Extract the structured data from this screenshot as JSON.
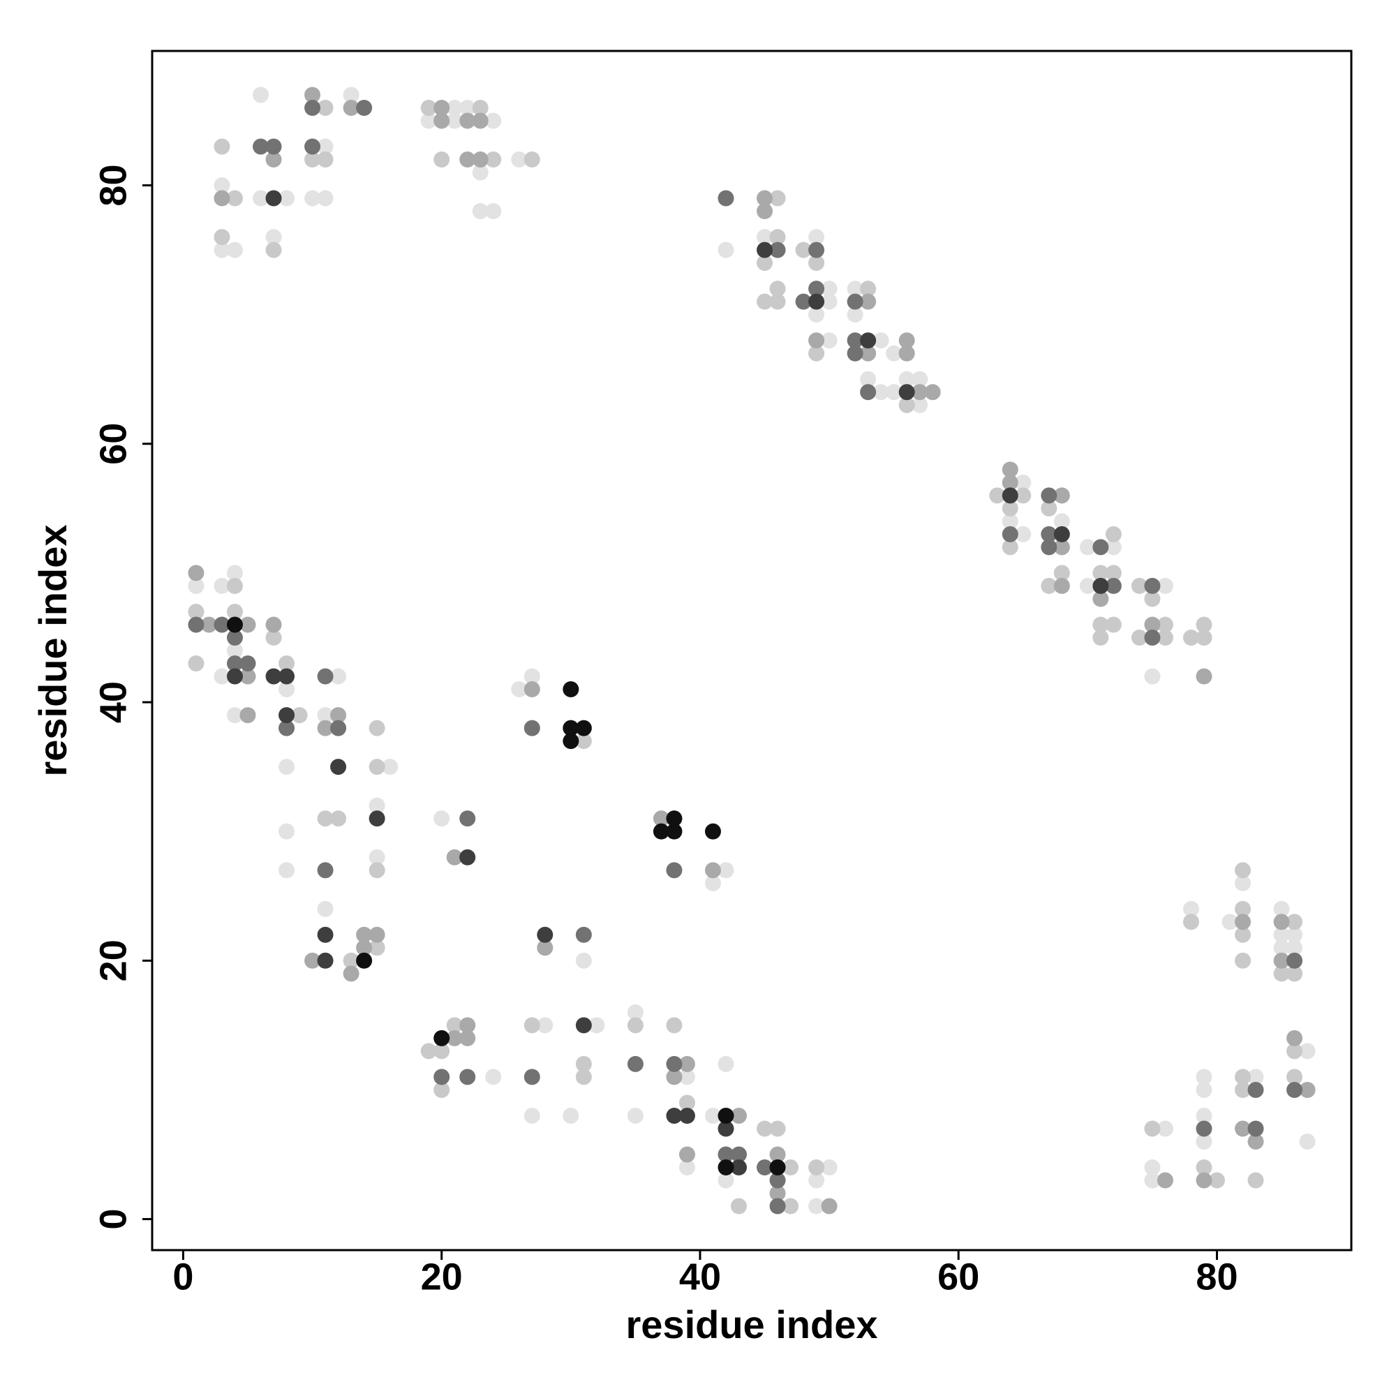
{
  "chart_data": {
    "type": "scatter",
    "xlabel": "residue index",
    "ylabel": "residue index",
    "xlim": [
      -2.4,
      90.4
    ],
    "ylim": [
      -2.4,
      90.4
    ],
    "xticks": [
      0,
      20,
      40,
      60,
      80
    ],
    "yticks": [
      0,
      20,
      40,
      60,
      80
    ],
    "series": [
      {
        "color": "#e2e2e2",
        "x": [
          6,
          11,
          3,
          6,
          8,
          10,
          11,
          3,
          4,
          7,
          13,
          21,
          22,
          19,
          21,
          24,
          23,
          26,
          23,
          24,
          42,
          45,
          49,
          50,
          50,
          49,
          50,
          52,
          52,
          54,
          55,
          53,
          54,
          55,
          56,
          57,
          57,
          65,
          64,
          65,
          68,
          70,
          72,
          70,
          76,
          75,
          1,
          3,
          4,
          4,
          3,
          8,
          4,
          12,
          11,
          8,
          16,
          15,
          8,
          15,
          8,
          11,
          31,
          20,
          26,
          27,
          42,
          41,
          24,
          28,
          27,
          30,
          32,
          35,
          35,
          39,
          39,
          42,
          41,
          42,
          50,
          49,
          49,
          78,
          82,
          81,
          85,
          85,
          86,
          85,
          86,
          87,
          87,
          79,
          79,
          79,
          79,
          83,
          76,
          75,
          75
        ],
        "values": [
          87,
          83,
          80,
          79,
          79,
          79,
          79,
          75,
          75,
          76,
          87,
          86,
          86,
          85,
          85,
          85,
          81,
          82,
          78,
          78,
          75,
          76,
          76,
          72,
          71,
          70,
          68,
          72,
          70,
          68,
          67,
          65,
          64,
          64,
          65,
          65,
          63,
          57,
          54,
          53,
          54,
          52,
          52,
          49,
          49,
          42,
          49,
          49,
          50,
          44,
          42,
          41,
          39,
          42,
          39,
          35,
          35,
          32,
          30,
          28,
          27,
          24,
          20,
          31,
          41,
          42,
          27,
          26,
          11,
          15,
          8,
          8,
          15,
          16,
          8,
          11,
          4,
          12,
          8,
          3,
          4,
          3,
          1,
          24,
          26,
          23,
          24,
          22,
          22,
          21,
          21,
          13,
          6,
          11,
          10,
          8,
          6,
          11,
          7,
          4,
          3
        ]
      },
      {
        "color": "#c9c9c9",
        "x": [
          11,
          3,
          10,
          11,
          4,
          3,
          7,
          19,
          23,
          20,
          24,
          27,
          46,
          46,
          45,
          46,
          45,
          46,
          48,
          49,
          49,
          53,
          56,
          63,
          65,
          64,
          64,
          67,
          68,
          67,
          72,
          71,
          72,
          71,
          72,
          71,
          74,
          75,
          76,
          74,
          76,
          78,
          79,
          79,
          1,
          1,
          4,
          4,
          7,
          8,
          9,
          15,
          15,
          11,
          12,
          15,
          15,
          13,
          31,
          19,
          20,
          21,
          20,
          27,
          31,
          31,
          35,
          38,
          39,
          43,
          45,
          46,
          47,
          47,
          49,
          78,
          82,
          82,
          82,
          82,
          86,
          85,
          86,
          86,
          86,
          79,
          80,
          82,
          82,
          83,
          75
        ],
        "values": [
          86,
          83,
          82,
          82,
          79,
          76,
          75,
          86,
          86,
          82,
          82,
          82,
          79,
          76,
          74,
          72,
          71,
          71,
          75,
          74,
          67,
          72,
          63,
          56,
          56,
          55,
          52,
          55,
          50,
          49,
          53,
          50,
          50,
          46,
          46,
          45,
          49,
          48,
          46,
          45,
          45,
          45,
          46,
          45,
          47,
          43,
          49,
          47,
          45,
          43,
          39,
          38,
          35,
          31,
          31,
          27,
          21,
          20,
          37,
          13,
          13,
          15,
          10,
          15,
          12,
          11,
          15,
          15,
          9,
          1,
          7,
          7,
          4,
          1,
          4,
          23,
          27,
          24,
          22,
          20,
          23,
          19,
          19,
          13,
          11,
          4,
          3,
          11,
          10,
          3,
          7
        ]
      },
      {
        "color": "#a9a9a9",
        "x": [
          10,
          13,
          3,
          7,
          22,
          23,
          20,
          20,
          22,
          23,
          45,
          45,
          49,
          53,
          53,
          56,
          56,
          57,
          58,
          64,
          64,
          68,
          68,
          68,
          71,
          75,
          79,
          1,
          2,
          5,
          5,
          7,
          5,
          12,
          11,
          14,
          15,
          14,
          10,
          13,
          21,
          27,
          28,
          37,
          41,
          21,
          22,
          22,
          39,
          38,
          39,
          43,
          46,
          46,
          50,
          82,
          85,
          85,
          86,
          87,
          79,
          82,
          83,
          76
        ],
        "values": [
          87,
          86,
          79,
          82,
          85,
          85,
          86,
          85,
          82,
          82,
          79,
          78,
          68,
          71,
          67,
          68,
          67,
          64,
          64,
          58,
          57,
          56,
          52,
          49,
          48,
          46,
          42,
          50,
          46,
          46,
          42,
          46,
          39,
          39,
          38,
          22,
          22,
          21,
          20,
          19,
          28,
          41,
          21,
          31,
          27,
          14,
          15,
          14,
          12,
          11,
          5,
          8,
          5,
          2,
          1,
          23,
          23,
          20,
          14,
          10,
          3,
          7,
          6,
          3
        ]
      },
      {
        "color": "#727272",
        "x": [
          10,
          14,
          6,
          7,
          10,
          42,
          46,
          49,
          49,
          48,
          52,
          52,
          52,
          53,
          64,
          67,
          67,
          67,
          71,
          72,
          75,
          75,
          1,
          3,
          4,
          4,
          5,
          8,
          12,
          11,
          11,
          22,
          27,
          31,
          38,
          20,
          22,
          27,
          35,
          38,
          42,
          43,
          45,
          46,
          46,
          86,
          86,
          79,
          83,
          83
        ],
        "values": [
          86,
          86,
          83,
          83,
          83,
          79,
          75,
          75,
          72,
          71,
          71,
          68,
          67,
          64,
          53,
          56,
          53,
          52,
          52,
          49,
          49,
          45,
          46,
          46,
          45,
          43,
          43,
          38,
          38,
          42,
          27,
          31,
          38,
          22,
          27,
          11,
          11,
          11,
          12,
          12,
          5,
          5,
          4,
          3,
          1,
          20,
          10,
          7,
          10,
          7
        ]
      },
      {
        "color": "#3e3e3e",
        "x": [
          7,
          45,
          49,
          53,
          56,
          64,
          68,
          71,
          4,
          7,
          8,
          8,
          12,
          15,
          11,
          11,
          22,
          28,
          31,
          38,
          39,
          42,
          43
        ],
        "values": [
          79,
          75,
          71,
          68,
          64,
          56,
          53,
          49,
          42,
          42,
          42,
          39,
          35,
          31,
          22,
          20,
          28,
          22,
          15,
          8,
          8,
          7,
          4
        ]
      },
      {
        "color": "#101010",
        "x": [
          4,
          14,
          30,
          30,
          31,
          30,
          38,
          37,
          38,
          41,
          20,
          42,
          42,
          46
        ],
        "values": [
          46,
          20,
          41,
          38,
          38,
          37,
          31,
          30,
          30,
          30,
          14,
          8,
          4,
          4
        ]
      }
    ]
  }
}
